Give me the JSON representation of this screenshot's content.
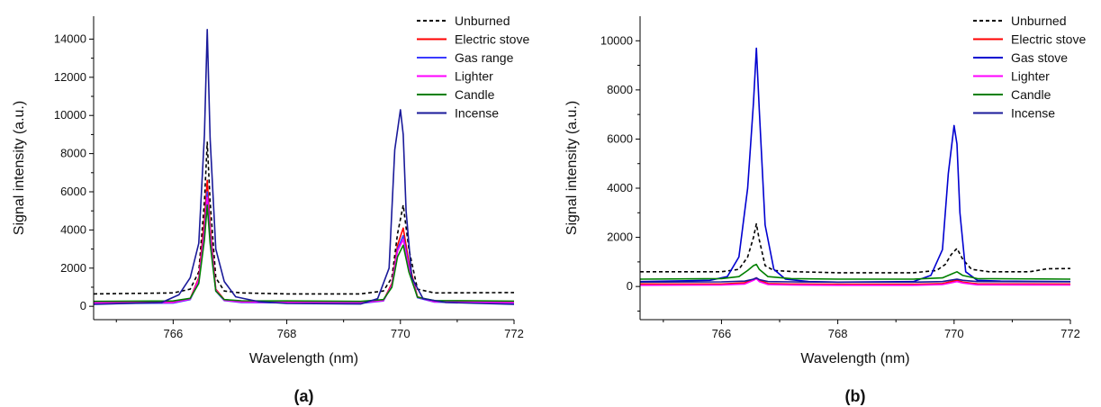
{
  "chart_data": [
    {
      "type": "line",
      "panel_label": "(a)",
      "xlabel": "Wavelength (nm)",
      "ylabel": "Signal intensity (a.u.)",
      "xlim": [
        764.6,
        772
      ],
      "ylim": [
        -700,
        15200
      ],
      "xticks": [
        766,
        768,
        770,
        772
      ],
      "yticks": [
        0,
        2000,
        4000,
        6000,
        8000,
        10000,
        12000,
        14000
      ],
      "legend_position": "top-right",
      "series": [
        {
          "name": "Unburned",
          "color": "#000000",
          "dash": true,
          "x": [
            764.6,
            766.0,
            766.3,
            766.45,
            766.55,
            766.6,
            766.65,
            766.75,
            766.9,
            767.2,
            768,
            769.3,
            769.7,
            769.85,
            769.95,
            770.05,
            770.15,
            770.3,
            770.6,
            772
          ],
          "y": [
            650,
            700,
            900,
            1800,
            5500,
            8600,
            5500,
            1500,
            800,
            700,
            650,
            650,
            800,
            1500,
            3800,
            5300,
            3000,
            900,
            700,
            720
          ]
        },
        {
          "name": "Electric stove",
          "color": "#ff0000",
          "dash": false,
          "x": [
            764.6,
            766.0,
            766.3,
            766.45,
            766.55,
            766.6,
            766.65,
            766.75,
            766.9,
            767.2,
            768,
            769.3,
            769.7,
            769.85,
            769.95,
            770.05,
            770.15,
            770.3,
            770.6,
            772
          ],
          "y": [
            200,
            210,
            400,
            1500,
            4500,
            6600,
            4200,
            900,
            350,
            250,
            200,
            180,
            300,
            1200,
            3200,
            4100,
            2300,
            500,
            250,
            200
          ]
        },
        {
          "name": "Gas range",
          "color": "#3a3aff",
          "dash": false,
          "x": [
            764.6,
            766.0,
            766.3,
            766.45,
            766.55,
            766.6,
            766.65,
            766.75,
            766.9,
            767.2,
            768,
            769.3,
            769.7,
            769.85,
            769.95,
            770.05,
            770.15,
            770.3,
            770.6,
            772
          ],
          "y": [
            150,
            170,
            350,
            1300,
            4000,
            6000,
            3800,
            800,
            300,
            200,
            180,
            160,
            280,
            1100,
            3000,
            3700,
            2100,
            450,
            220,
            160
          ]
        },
        {
          "name": "Lighter",
          "color": "#ff00ff",
          "dash": false,
          "x": [
            764.6,
            766.0,
            766.3,
            766.45,
            766.55,
            766.6,
            766.65,
            766.75,
            766.9,
            767.2,
            768,
            769.3,
            769.7,
            769.85,
            769.95,
            770.05,
            770.15,
            770.3,
            770.6,
            772
          ],
          "y": [
            180,
            200,
            380,
            1400,
            3800,
            5700,
            3600,
            850,
            320,
            230,
            200,
            190,
            300,
            1100,
            2900,
            3500,
            2000,
            480,
            240,
            190
          ]
        },
        {
          "name": "Candle",
          "color": "#008000",
          "dash": false,
          "x": [
            764.6,
            766.0,
            766.3,
            766.45,
            766.55,
            766.6,
            766.65,
            766.75,
            766.9,
            767.2,
            768,
            769.3,
            769.7,
            769.85,
            769.95,
            770.05,
            770.15,
            770.3,
            770.6,
            772
          ],
          "y": [
            260,
            280,
            420,
            1200,
            3500,
            5300,
            3300,
            800,
            350,
            290,
            280,
            260,
            350,
            1000,
            2600,
            3200,
            1800,
            480,
            300,
            270
          ]
        },
        {
          "name": "Incense",
          "color": "#1a1a9a",
          "dash": false,
          "x": [
            764.6,
            765.8,
            766.1,
            766.3,
            766.45,
            766.55,
            766.6,
            766.65,
            766.75,
            766.9,
            767.1,
            767.5,
            768,
            769.3,
            769.6,
            769.8,
            769.9,
            770.0,
            770.05,
            770.1,
            770.2,
            770.4,
            770.8,
            772
          ],
          "y": [
            100,
            200,
            600,
            1500,
            3300,
            9000,
            14500,
            8800,
            3000,
            1300,
            500,
            250,
            150,
            120,
            400,
            2000,
            8200,
            10300,
            9000,
            5000,
            1500,
            400,
            200,
            100
          ]
        }
      ]
    },
    {
      "type": "line",
      "panel_label": "(b)",
      "xlabel": "Wavelength (nm)",
      "ylabel": "Signal intensity (a.u.)",
      "xlim": [
        764.6,
        772
      ],
      "ylim": [
        -1350,
        11000
      ],
      "xticks": [
        766,
        768,
        770,
        772
      ],
      "yticks": [
        0,
        2000,
        4000,
        6000,
        8000,
        10000
      ],
      "legend_position": "top-right",
      "series": [
        {
          "name": "Unburned",
          "color": "#000000",
          "dash": true,
          "x": [
            764.6,
            766.0,
            766.3,
            766.45,
            766.55,
            766.6,
            766.65,
            766.75,
            766.9,
            767.3,
            768,
            769.3,
            769.7,
            769.85,
            769.95,
            770.05,
            770.15,
            770.3,
            770.6,
            771.3,
            771.6,
            772
          ],
          "y": [
            600,
            600,
            700,
            1200,
            2000,
            2550,
            1900,
            850,
            650,
            600,
            560,
            560,
            650,
            900,
            1300,
            1550,
            1100,
            700,
            600,
            600,
            720,
            730
          ]
        },
        {
          "name": "Electric stove",
          "color": "#ff0000",
          "dash": false,
          "x": [
            764.6,
            766.0,
            766.4,
            766.55,
            766.6,
            766.65,
            766.8,
            767.2,
            768,
            769.3,
            769.8,
            769.95,
            770.05,
            770.15,
            770.4,
            772
          ],
          "y": [
            100,
            100,
            150,
            300,
            350,
            250,
            120,
            100,
            90,
            90,
            120,
            200,
            250,
            180,
            110,
            100
          ]
        },
        {
          "name": "Gas stove",
          "color": "#0000d0",
          "dash": false,
          "x": [
            764.6,
            765.8,
            766.1,
            766.3,
            766.45,
            766.55,
            766.6,
            766.65,
            766.75,
            766.9,
            767.1,
            767.5,
            768,
            769.3,
            769.6,
            769.8,
            769.9,
            770.0,
            770.05,
            770.1,
            770.2,
            770.4,
            770.8,
            772
          ],
          "y": [
            200,
            250,
            400,
            1200,
            4000,
            7500,
            9700,
            7200,
            2500,
            700,
            300,
            200,
            180,
            200,
            450,
            1500,
            4600,
            6550,
            5800,
            3000,
            600,
            250,
            220,
            200
          ]
        },
        {
          "name": "Lighter",
          "color": "#ff00ff",
          "dash": false,
          "x": [
            764.6,
            766.0,
            766.4,
            766.55,
            766.6,
            766.65,
            766.8,
            767.2,
            768,
            769.3,
            769.8,
            769.95,
            770.05,
            770.15,
            770.4,
            772
          ],
          "y": [
            50,
            60,
            100,
            250,
            320,
            200,
            80,
            60,
            50,
            50,
            80,
            150,
            200,
            140,
            70,
            60
          ]
        },
        {
          "name": "Candle",
          "color": "#008000",
          "dash": false,
          "x": [
            764.6,
            766.0,
            766.3,
            766.45,
            766.55,
            766.6,
            766.65,
            766.8,
            767.2,
            768,
            769.3,
            769.8,
            769.95,
            770.05,
            770.15,
            770.4,
            772
          ],
          "y": [
            300,
            320,
            400,
            650,
            850,
            900,
            700,
            400,
            320,
            300,
            300,
            350,
            500,
            600,
            450,
            320,
            300
          ]
        },
        {
          "name": "Incense",
          "color": "#1a1a9a",
          "dash": false,
          "x": [
            764.6,
            766.0,
            766.4,
            766.55,
            766.6,
            766.65,
            766.8,
            767.2,
            768,
            769.3,
            769.8,
            769.95,
            770.05,
            770.15,
            770.4,
            772
          ],
          "y": [
            180,
            190,
            220,
            300,
            350,
            280,
            200,
            190,
            180,
            180,
            200,
            260,
            300,
            250,
            200,
            190
          ]
        }
      ]
    }
  ]
}
